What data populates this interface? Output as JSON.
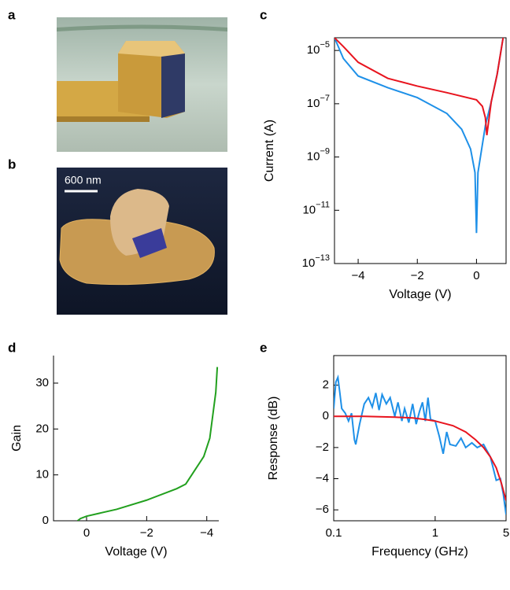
{
  "images": [
    {
      "label": "a"
    },
    {
      "label": "b",
      "scale_bar": "600 nm"
    }
  ],
  "chart_data": [
    {
      "type": "line",
      "label": "c",
      "xlabel": "Voltage (V)",
      "ylabel": "Current (A)",
      "yscale": "log",
      "box": true,
      "xlim": [
        -4.8,
        1
      ],
      "xticks": [
        {
          "value": -4,
          "label": "−4"
        },
        {
          "value": -2,
          "label": "−2"
        },
        0
      ],
      "ylim": [
        1e-13,
        3e-05
      ],
      "yticks": [
        {
          "value": 1e-13,
          "label": "10−13"
        },
        {
          "value": 1e-11,
          "label": "10−11"
        },
        {
          "value": 1e-09,
          "label": "10−9"
        },
        {
          "value": 1e-07,
          "label": "10−7"
        },
        {
          "value": 1e-05,
          "label": "10−5"
        }
      ],
      "series": [
        {
          "color": "#1e90e8",
          "x": [
            -4.8,
            -4.5,
            -4,
            -3,
            -2,
            -1,
            -0.5,
            -0.2,
            -0.05,
            0,
            0.05,
            0.3,
            0.5,
            0.7,
            0.9
          ],
          "values": [
            3e-05,
            5e-06,
            1.1e-06,
            4e-07,
            1.7e-07,
            4.3e-08,
            1.1e-08,
            2e-09,
            2.6e-10,
            1.4e-12,
            2.6e-10,
            1.5e-08,
            1.2e-07,
            1.3e-06,
            3e-05
          ]
        },
        {
          "color": "#e8141e",
          "x": [
            -4.8,
            -4.5,
            -4,
            -3,
            -2,
            -1,
            0,
            0.2,
            0.3,
            0.35,
            0.5,
            0.7,
            0.9
          ],
          "values": [
            3e-05,
            1.4e-05,
            3.6e-06,
            9e-07,
            4.6e-07,
            2.6e-07,
            1.4e-07,
            8e-08,
            3e-08,
            6.6e-09,
            1.2e-07,
            1.3e-06,
            3e-05
          ]
        }
      ]
    },
    {
      "type": "line",
      "label": "d",
      "xlabel": "Voltage (V)",
      "ylabel": "Gain",
      "box": false,
      "xlim": [
        1.1,
        -4.4
      ],
      "xticks": [
        0,
        {
          "value": -2,
          "label": "−2"
        },
        {
          "value": -4,
          "label": "−4"
        }
      ],
      "ylim": [
        0,
        36
      ],
      "yticks": [
        0,
        10,
        20,
        30
      ],
      "series": [
        {
          "color": "#22a01e",
          "x": [
            0.3,
            0.2,
            0,
            -1,
            -2,
            -3,
            -3.3,
            -3.6,
            -3.9,
            -4.0,
            -4.1,
            -4.2,
            -4.3,
            -4.35
          ],
          "values": [
            0,
            0.5,
            1,
            2.5,
            4.5,
            7,
            8,
            11,
            14,
            16,
            18,
            23,
            28,
            33.5
          ]
        }
      ]
    },
    {
      "type": "line",
      "label": "e",
      "xlabel": "Frequency (GHz)",
      "ylabel": "Response (dB)",
      "xscale": "log",
      "box": true,
      "xlim": [
        0.1,
        5
      ],
      "xticks": [
        0.1,
        1,
        5
      ],
      "ylim": [
        -6.7,
        3.9
      ],
      "yticks": [
        {
          "value": -6,
          "label": "−6"
        },
        {
          "value": -4,
          "label": "−4"
        },
        {
          "value": -2,
          "label": "−2"
        },
        0,
        2
      ],
      "series": [
        {
          "color": "#1e90e8",
          "x": [
            0.1,
            0.105,
            0.11,
            0.115,
            0.12,
            0.13,
            0.14,
            0.15,
            0.16,
            0.165,
            0.18,
            0.2,
            0.22,
            0.24,
            0.26,
            0.28,
            0.3,
            0.33,
            0.36,
            0.4,
            0.43,
            0.47,
            0.5,
            0.55,
            0.6,
            0.65,
            0.7,
            0.75,
            0.8,
            0.85,
            0.9,
            1.0,
            1.1,
            1.2,
            1.3,
            1.4,
            1.6,
            1.8,
            2.0,
            2.3,
            2.6,
            3.0,
            3.5,
            4.0,
            4.4,
            4.7,
            5.0
          ],
          "values": [
            0.5,
            2.2,
            2.5,
            1.5,
            0.5,
            0.2,
            -0.3,
            0.2,
            -1.5,
            -1.8,
            -0.5,
            0.8,
            1.2,
            0.6,
            1.5,
            0.4,
            1.4,
            0.8,
            1.2,
            0.0,
            0.9,
            -0.3,
            0.5,
            -0.4,
            0.8,
            -0.5,
            0.3,
            0.9,
            -0.3,
            1.2,
            -0.2,
            -0.3,
            -1.3,
            -2.4,
            -1.0,
            -1.8,
            -1.9,
            -1.4,
            -2.0,
            -1.7,
            -2.0,
            -1.8,
            -2.6,
            -4.1,
            -4.0,
            -5.0,
            -6.3
          ]
        },
        {
          "color": "#e8141e",
          "x": [
            0.1,
            0.2,
            0.4,
            0.6,
            0.8,
            1,
            1.5,
            2,
            2.5,
            3,
            3.5,
            4,
            4.5,
            5
          ],
          "values": [
            0,
            0,
            -0.05,
            -0.1,
            -0.2,
            -0.3,
            -0.6,
            -1.0,
            -1.5,
            -2.0,
            -2.6,
            -3.3,
            -4.3,
            -5.4
          ]
        }
      ]
    }
  ]
}
